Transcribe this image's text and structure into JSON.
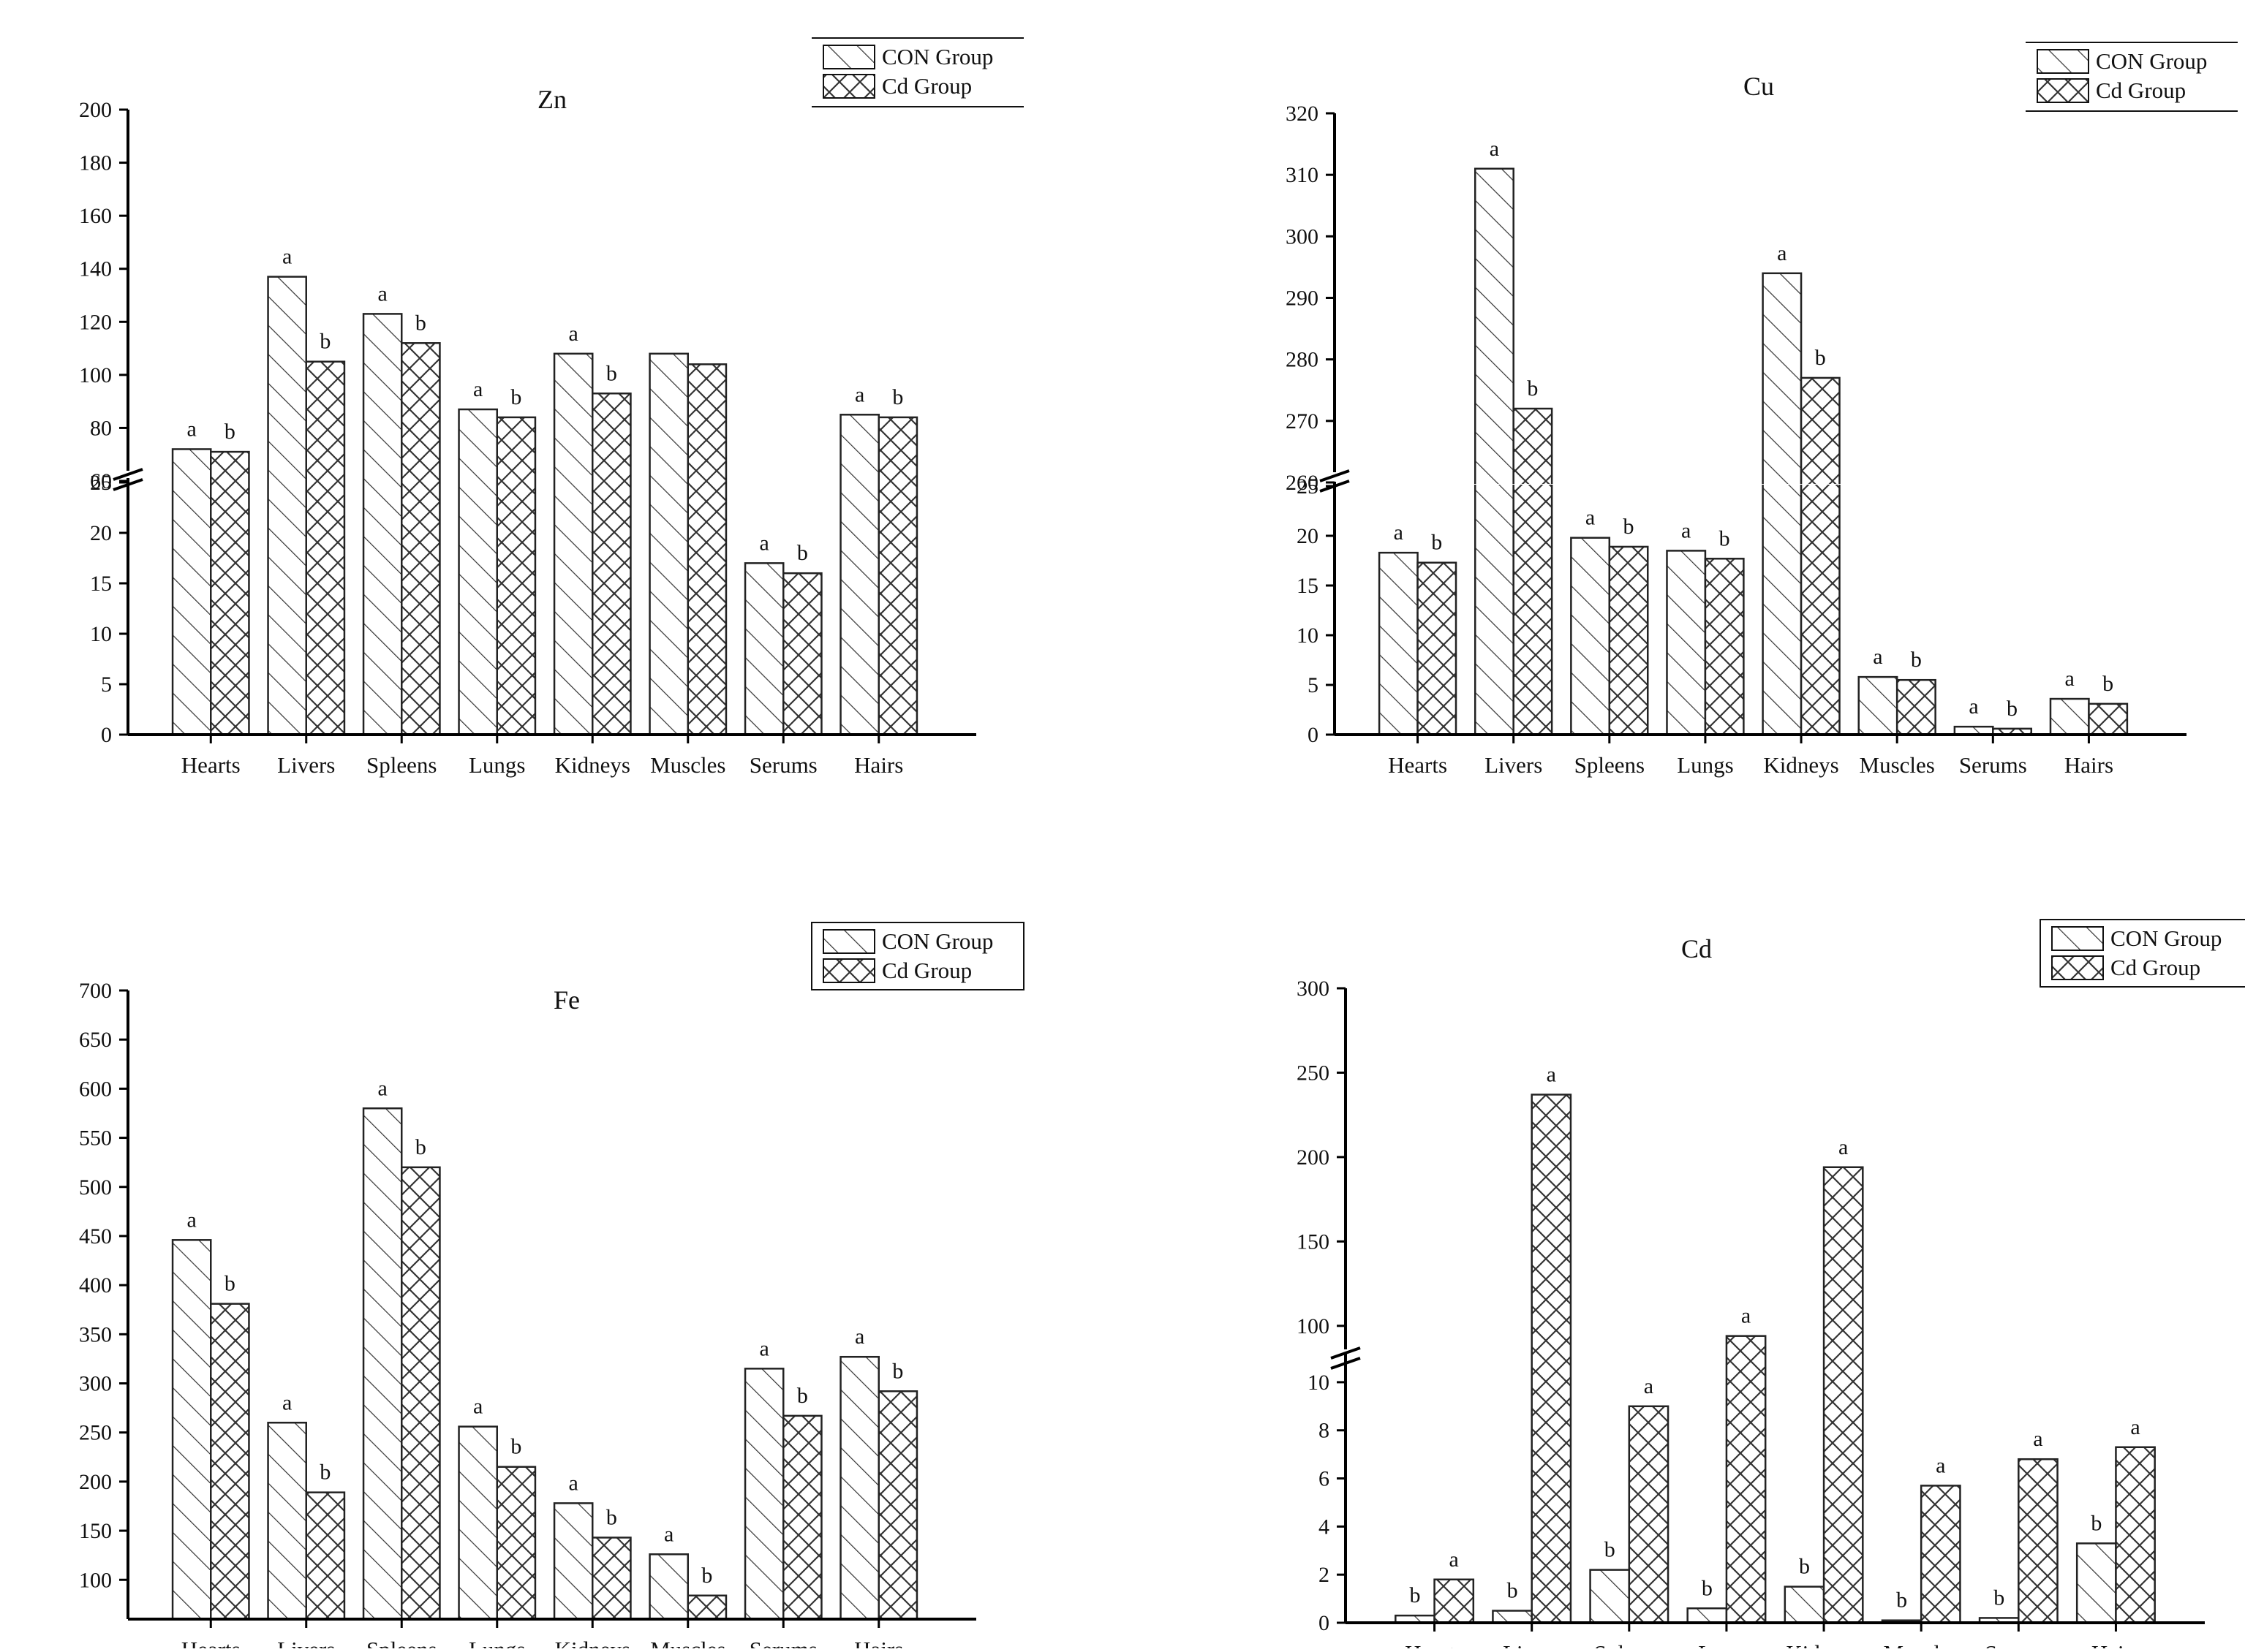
{
  "figure": {
    "series": [
      "CON Group",
      "Cd Group"
    ],
    "colors": {
      "axis": "#000000",
      "bar_stroke": "#222222",
      "hatch": "#333333",
      "background": "#ffffff"
    }
  },
  "chart_data": [
    {
      "id": "zn",
      "type": "bar",
      "title": "Zn",
      "xlabel": "",
      "ylabel": "",
      "categories": [
        "Hearts",
        "Livers",
        "Spleens",
        "Lungs",
        "Kidneys",
        "Muscles",
        "Serums",
        "Hairs"
      ],
      "series": [
        {
          "name": "CON Group",
          "values": [
            72,
            137,
            123,
            87,
            108,
            108,
            17,
            85
          ]
        },
        {
          "name": "Cd Group",
          "values": [
            71,
            105,
            112,
            84,
            93,
            104,
            16,
            84
          ]
        }
      ],
      "letters": [
        [
          "a",
          "b"
        ],
        [
          "a",
          "b"
        ],
        [
          "a",
          "b"
        ],
        [
          "a",
          "b"
        ],
        [
          "a",
          "b"
        ],
        [
          "",
          ""
        ],
        [
          "a",
          "b"
        ],
        [
          "a",
          "b"
        ]
      ],
      "axis_break": {
        "lower": [
          0,
          25
        ],
        "upper": [
          60,
          200
        ]
      },
      "lower_ticks": [
        0,
        5,
        10,
        15,
        20,
        25
      ],
      "upper_ticks": [
        60,
        80,
        100,
        120,
        140,
        160,
        180,
        200
      ],
      "legend": "top-right"
    },
    {
      "id": "cu",
      "type": "bar",
      "title": "Cu",
      "xlabel": "",
      "ylabel": "",
      "categories": [
        "Hearts",
        "Livers",
        "Spleens",
        "Lungs",
        "Kidneys",
        "Muscles",
        "Serums",
        "Hairs"
      ],
      "series": [
        {
          "name": "CON Group",
          "values": [
            18.3,
            311,
            19.8,
            18.5,
            294,
            5.8,
            0.8,
            3.6
          ]
        },
        {
          "name": "Cd Group",
          "values": [
            17.3,
            272,
            18.9,
            17.7,
            277,
            5.5,
            0.6,
            3.1
          ]
        }
      ],
      "letters": [
        [
          "a",
          "b"
        ],
        [
          "a",
          "b"
        ],
        [
          "a",
          "b"
        ],
        [
          "a",
          "b"
        ],
        [
          "a",
          "b"
        ],
        [
          "a",
          "b"
        ],
        [
          "a",
          "b"
        ],
        [
          "a",
          "b"
        ]
      ],
      "axis_break": {
        "lower": [
          0,
          25
        ],
        "upper": [
          260,
          320
        ]
      },
      "lower_ticks": [
        0,
        5,
        10,
        15,
        20,
        25
      ],
      "upper_ticks": [
        260,
        270,
        280,
        290,
        300,
        310,
        320
      ],
      "legend": "top-right"
    },
    {
      "id": "fe",
      "type": "bar",
      "title": "Fe",
      "xlabel": "",
      "ylabel": "",
      "categories": [
        "Hearts",
        "Livers",
        "Spleens",
        "Lungs",
        "Kidneys",
        "Muscles",
        "Serums",
        "Hairs"
      ],
      "series": [
        {
          "name": "CON Group",
          "values": [
            446,
            260,
            580,
            256,
            178,
            126,
            315,
            327
          ]
        },
        {
          "name": "Cd Group",
          "values": [
            381,
            189,
            520,
            215,
            143,
            84,
            267,
            292
          ]
        }
      ],
      "letters": [
        [
          "a",
          "b"
        ],
        [
          "a",
          "b"
        ],
        [
          "a",
          "b"
        ],
        [
          "a",
          "b"
        ],
        [
          "a",
          "b"
        ],
        [
          "a",
          "b"
        ],
        [
          "a",
          "b"
        ],
        [
          "a",
          "b"
        ]
      ],
      "ylim": [
        60,
        700
      ],
      "ticks": [
        100,
        150,
        200,
        250,
        300,
        350,
        400,
        450,
        500,
        550,
        600,
        650,
        700
      ],
      "legend": "top-right"
    },
    {
      "id": "cd",
      "type": "bar",
      "title": "Cd",
      "xlabel": "",
      "ylabel": "",
      "categories": [
        "Hearts",
        "Livers",
        "Spleens",
        "Lungs",
        "Kidneys",
        "Muscles",
        "Serums",
        "Hairs"
      ],
      "series": [
        {
          "name": "CON Group",
          "values": [
            0.3,
            0.5,
            2.2,
            0.6,
            1.5,
            0.1,
            0.2,
            3.3
          ]
        },
        {
          "name": "Cd Group",
          "values": [
            1.8,
            237,
            9.0,
            94,
            194,
            5.7,
            6.8,
            7.3
          ]
        }
      ],
      "letters": [
        [
          "b",
          "a"
        ],
        [
          "b",
          "a"
        ],
        [
          "b",
          "a"
        ],
        [
          "b",
          "a"
        ],
        [
          "b",
          "a"
        ],
        [
          "b",
          "a"
        ],
        [
          "b",
          "a"
        ],
        [
          "b",
          "a"
        ]
      ],
      "axis_break": {
        "lower": [
          0,
          11
        ],
        "upper": [
          80,
          300
        ]
      },
      "lower_ticks": [
        0,
        2,
        4,
        6,
        8,
        10
      ],
      "upper_ticks": [
        100,
        150,
        200,
        250,
        300
      ],
      "legend": "top-right"
    }
  ]
}
